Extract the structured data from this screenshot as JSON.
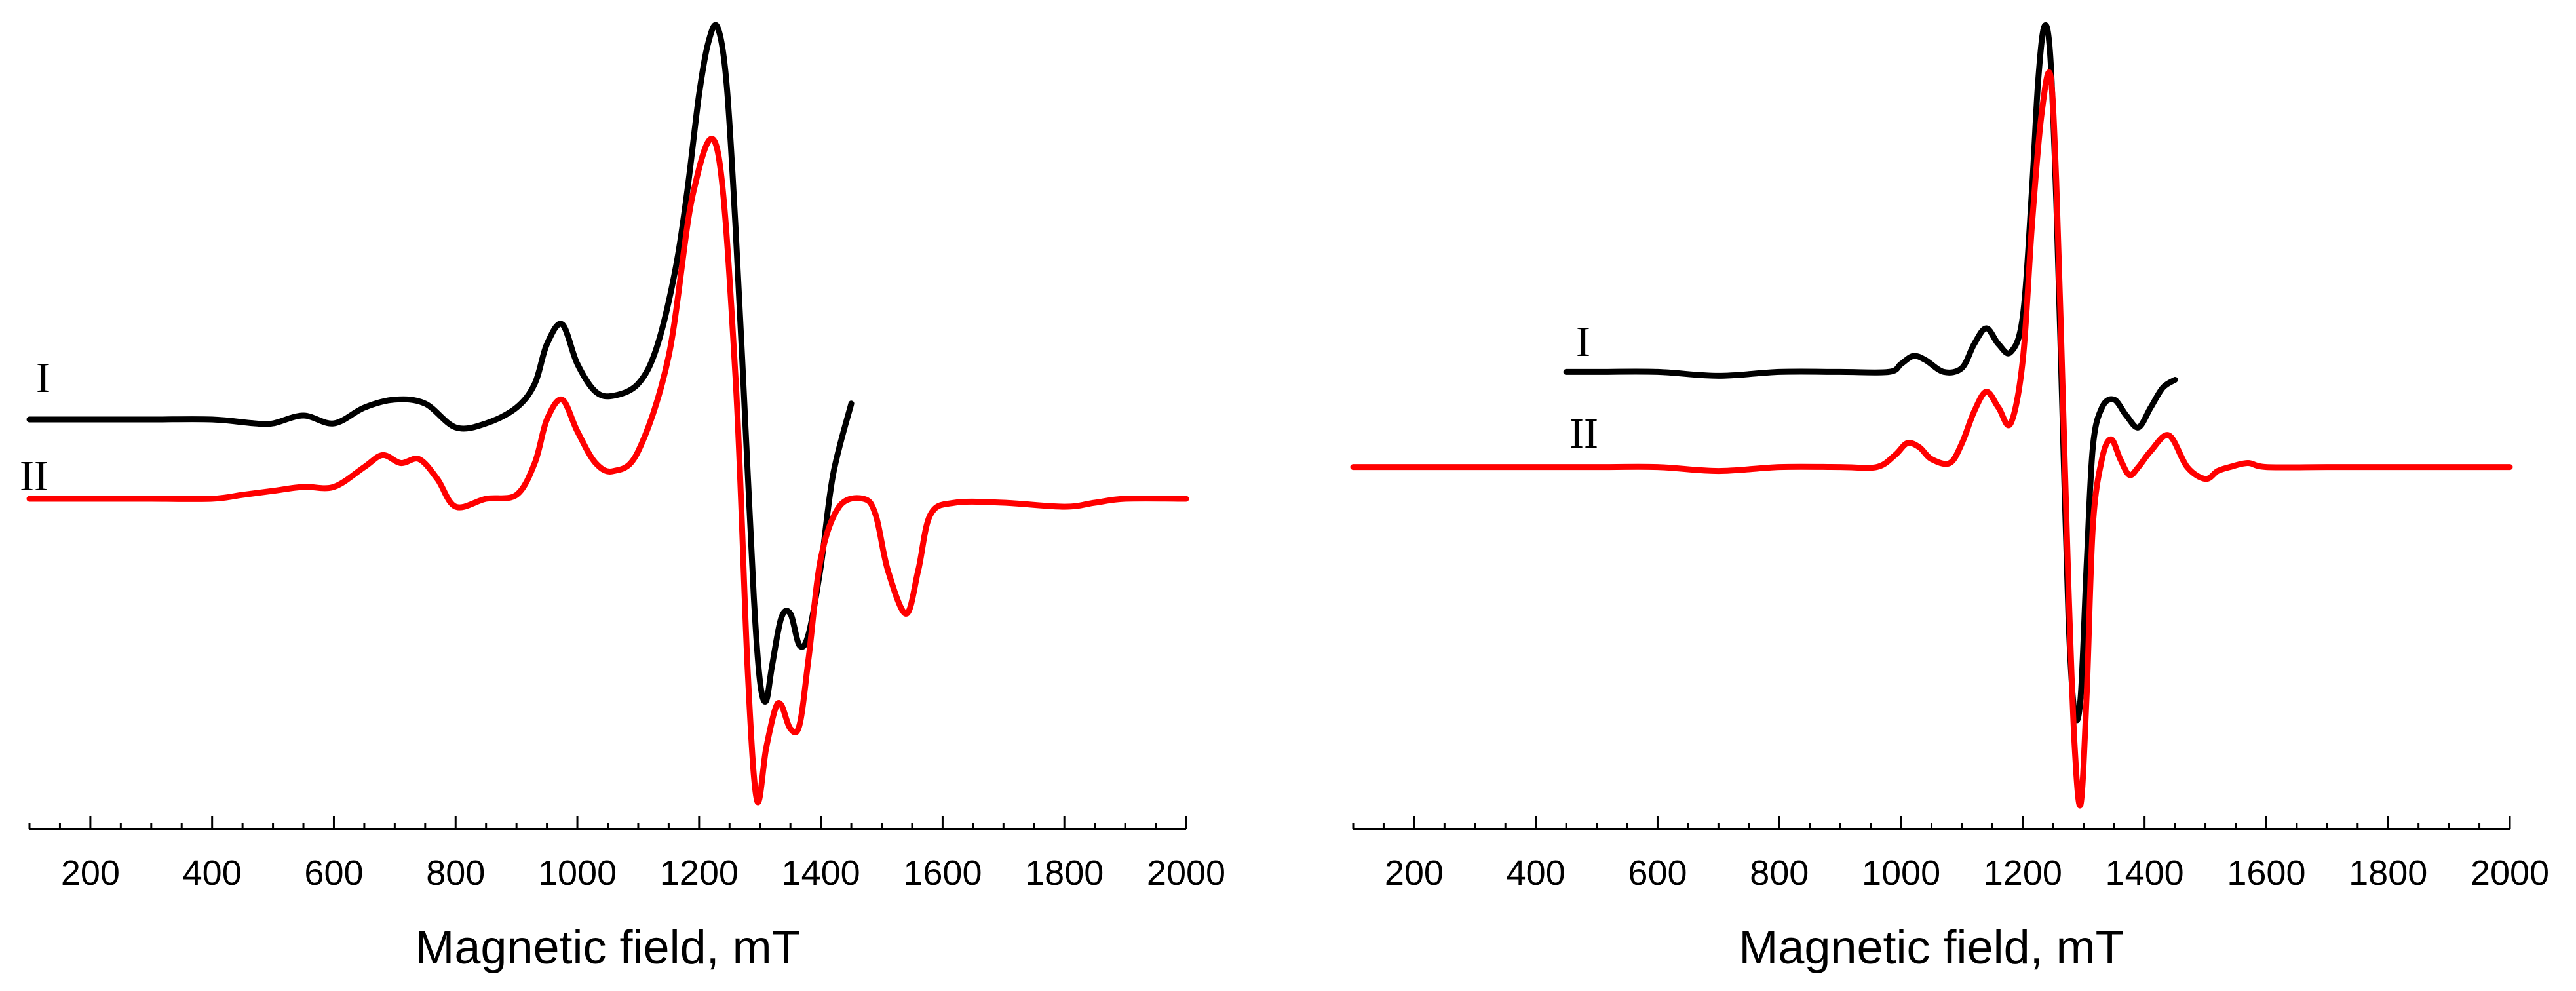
{
  "chart_data": [
    {
      "type": "line",
      "panel": "left",
      "xlabel": "Magnetic field, mT",
      "ylabel": "",
      "xlim": [
        100,
        2000
      ],
      "ylim": [
        -1.0,
        1.0
      ],
      "x_ticks": [
        200,
        400,
        600,
        800,
        1000,
        1200,
        1400,
        1600,
        1800,
        2000
      ],
      "grid": false,
      "legend": "none",
      "series": [
        {
          "name": "I",
          "color": "#000000",
          "x": [
            100,
            200,
            300,
            400,
            470,
            500,
            550,
            600,
            650,
            700,
            750,
            800,
            850,
            900,
            930,
            950,
            975,
            1000,
            1030,
            1060,
            1100,
            1130,
            1160,
            1180,
            1200,
            1215,
            1230,
            1245,
            1260,
            1275,
            1290,
            1300,
            1310,
            1320,
            1335,
            1350,
            1365,
            1380,
            1400,
            1420,
            1450
          ],
          "y": [
            0.0,
            0.0,
            0.0,
            0.0,
            -0.01,
            -0.01,
            0.01,
            -0.01,
            0.03,
            0.05,
            0.04,
            -0.02,
            -0.01,
            0.03,
            0.09,
            0.19,
            0.24,
            0.14,
            0.07,
            0.06,
            0.09,
            0.18,
            0.37,
            0.57,
            0.82,
            0.95,
            0.99,
            0.85,
            0.48,
            0.02,
            -0.45,
            -0.66,
            -0.71,
            -0.62,
            -0.5,
            -0.49,
            -0.57,
            -0.54,
            -0.37,
            -0.14,
            0.04
          ]
        },
        {
          "name": "II",
          "color": "#ff0000",
          "x": [
            100,
            200,
            300,
            400,
            450,
            500,
            550,
            600,
            650,
            680,
            710,
            740,
            770,
            800,
            850,
            900,
            930,
            950,
            975,
            1000,
            1030,
            1060,
            1100,
            1150,
            1190,
            1230,
            1260,
            1280,
            1295,
            1310,
            1325,
            1335,
            1350,
            1365,
            1380,
            1400,
            1430,
            1470,
            1490,
            1510,
            1540,
            1560,
            1580,
            1620,
            1700,
            1800,
            1850,
            1900,
            2000
          ],
          "y": [
            -0.2,
            -0.2,
            -0.2,
            -0.2,
            -0.19,
            -0.18,
            -0.17,
            -0.17,
            -0.12,
            -0.09,
            -0.11,
            -0.1,
            -0.15,
            -0.22,
            -0.2,
            -0.19,
            -0.11,
            0.0,
            0.05,
            -0.03,
            -0.11,
            -0.13,
            -0.08,
            0.16,
            0.57,
            0.68,
            0.1,
            -0.64,
            -0.96,
            -0.83,
            -0.73,
            -0.72,
            -0.78,
            -0.77,
            -0.6,
            -0.35,
            -0.22,
            -0.2,
            -0.24,
            -0.38,
            -0.49,
            -0.38,
            -0.24,
            -0.21,
            -0.21,
            -0.22,
            -0.21,
            -0.2,
            -0.2
          ]
        }
      ],
      "annotations": [
        "I",
        "II"
      ]
    },
    {
      "type": "line",
      "panel": "right",
      "xlabel": "Magnetic field, mT",
      "ylabel": "",
      "xlim": [
        100,
        2000
      ],
      "ylim": [
        -1.0,
        1.0
      ],
      "x_ticks": [
        200,
        400,
        600,
        800,
        1000,
        1200,
        1400,
        1600,
        1800,
        2000
      ],
      "grid": false,
      "legend": "none",
      "series": [
        {
          "name": "I",
          "color": "#000000",
          "x": [
            450,
            500,
            600,
            700,
            800,
            900,
            980,
            1000,
            1020,
            1040,
            1070,
            1100,
            1120,
            1140,
            1160,
            1180,
            1200,
            1215,
            1225,
            1235,
            1245,
            1255,
            1265,
            1275,
            1285,
            1295,
            1305,
            1315,
            1330,
            1350,
            1370,
            1390,
            1410,
            1430,
            1450
          ],
          "y": [
            0.12,
            0.12,
            0.12,
            0.11,
            0.12,
            0.12,
            0.12,
            0.14,
            0.16,
            0.15,
            0.12,
            0.13,
            0.19,
            0.23,
            0.19,
            0.17,
            0.26,
            0.58,
            0.85,
            0.99,
            0.92,
            0.55,
            0.02,
            -0.5,
            -0.74,
            -0.7,
            -0.36,
            -0.07,
            0.03,
            0.05,
            0.01,
            -0.02,
            0.03,
            0.08,
            0.1
          ],
          "value_axis_min": -0.75
        },
        {
          "name": "II",
          "color": "#ff0000",
          "x": [
            100,
            300,
            500,
            600,
            700,
            800,
            900,
            960,
            990,
            1010,
            1030,
            1050,
            1080,
            1100,
            1120,
            1140,
            1160,
            1180,
            1200,
            1215,
            1230,
            1245,
            1255,
            1265,
            1275,
            1285,
            1295,
            1305,
            1315,
            1330,
            1345,
            1360,
            1375,
            1390,
            1410,
            1440,
            1470,
            1500,
            1520,
            1540,
            1570,
            1600,
            1700,
            1800,
            1900,
            2000
          ],
          "y": [
            -0.12,
            -0.12,
            -0.12,
            -0.12,
            -0.13,
            -0.12,
            -0.12,
            -0.12,
            -0.09,
            -0.06,
            -0.07,
            -0.1,
            -0.11,
            -0.06,
            0.02,
            0.07,
            0.03,
            -0.01,
            0.15,
            0.49,
            0.76,
            0.87,
            0.6,
            0.1,
            -0.42,
            -0.82,
            -0.97,
            -0.69,
            -0.27,
            -0.1,
            -0.05,
            -0.1,
            -0.14,
            -0.12,
            -0.08,
            -0.04,
            -0.12,
            -0.15,
            -0.13,
            -0.12,
            -0.11,
            -0.12,
            -0.12,
            -0.12,
            -0.12,
            -0.12
          ]
        }
      ],
      "annotations": [
        "I",
        "II"
      ]
    }
  ]
}
